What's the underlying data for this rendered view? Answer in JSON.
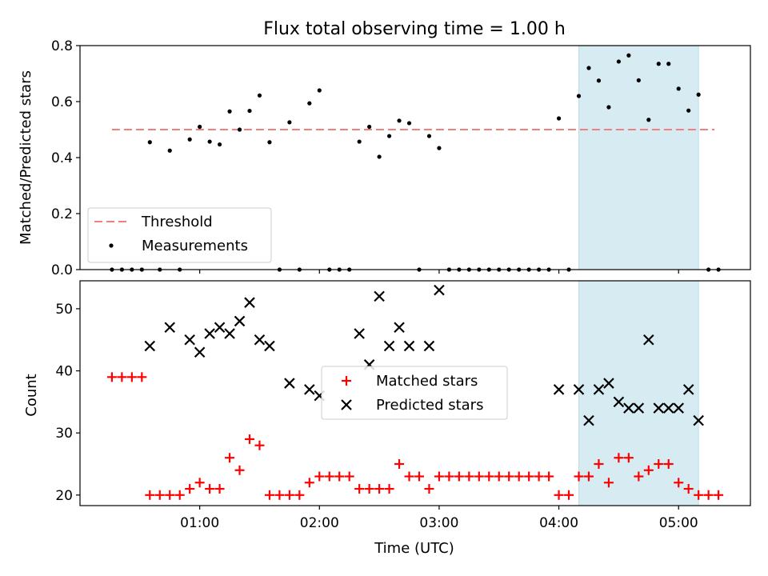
{
  "chart_data": [
    {
      "type": "scatter",
      "title": "Flux total observing time = 1.00 h",
      "ylabel": "Matched/Predicted stars",
      "xlabel": "",
      "ylim": [
        0,
        0.8
      ],
      "xlim": [
        "00:00",
        "05:36"
      ],
      "x_ticks": [
        "01:00",
        "02:00",
        "03:00",
        "04:00",
        "05:00"
      ],
      "y_ticks": [
        "0.0",
        "0.2",
        "0.4",
        "0.6",
        "0.8"
      ],
      "legend_position": "lower-left",
      "highlight_span": [
        "04:10",
        "05:10"
      ],
      "threshold": {
        "name": "Threshold",
        "value": 0.5,
        "x_range": [
          "00:16",
          "05:18"
        ],
        "color": "#f08080"
      },
      "series": [
        {
          "name": "Measurements",
          "color": "#000000",
          "points": [
            [
              "00:16",
              0
            ],
            [
              "00:21",
              0
            ],
            [
              "00:26",
              0
            ],
            [
              "00:31",
              0
            ],
            [
              "00:35",
              0.455
            ],
            [
              "00:40",
              0
            ],
            [
              "00:45",
              0.425
            ],
            [
              "00:50",
              0
            ],
            [
              "00:55",
              0.465
            ],
            [
              "01:00",
              0.51
            ],
            [
              "01:05",
              0.457
            ],
            [
              "01:10",
              0.447
            ],
            [
              "01:15",
              0.565
            ],
            [
              "01:20",
              0.5
            ],
            [
              "01:25",
              0.567
            ],
            [
              "01:30",
              0.622
            ],
            [
              "01:35",
              0.455
            ],
            [
              "01:40",
              0
            ],
            [
              "01:45",
              0.526
            ],
            [
              "01:50",
              0
            ],
            [
              "01:55",
              0.594
            ],
            [
              "02:00",
              0.64
            ],
            [
              "02:05",
              0
            ],
            [
              "02:10",
              0
            ],
            [
              "02:15",
              0
            ],
            [
              "02:20",
              0.457
            ],
            [
              "02:25",
              0.51
            ],
            [
              "02:30",
              0.403
            ],
            [
              "02:35",
              0.477
            ],
            [
              "02:40",
              0.532
            ],
            [
              "02:45",
              0.523
            ],
            [
              "02:50",
              0
            ],
            [
              "02:55",
              0.477
            ],
            [
              "03:00",
              0.434
            ],
            [
              "03:05",
              0
            ],
            [
              "03:10",
              0
            ],
            [
              "03:15",
              0
            ],
            [
              "03:20",
              0
            ],
            [
              "03:25",
              0
            ],
            [
              "03:30",
              0
            ],
            [
              "03:35",
              0
            ],
            [
              "03:40",
              0
            ],
            [
              "03:45",
              0
            ],
            [
              "03:50",
              0
            ],
            [
              "03:55",
              0
            ],
            [
              "04:00",
              0.54
            ],
            [
              "04:05",
              0
            ],
            [
              "04:10",
              0.62
            ],
            [
              "04:15",
              0.72
            ],
            [
              "04:20",
              0.675
            ],
            [
              "04:25",
              0.58
            ],
            [
              "04:30",
              0.743
            ],
            [
              "04:35",
              0.765
            ],
            [
              "04:40",
              0.676
            ],
            [
              "04:45",
              0.535
            ],
            [
              "04:50",
              0.735
            ],
            [
              "04:55",
              0.735
            ],
            [
              "05:00",
              0.646
            ],
            [
              "05:05",
              0.568
            ],
            [
              "05:10",
              0.625
            ],
            [
              "05:15",
              0
            ],
            [
              "05:20",
              0
            ]
          ]
        }
      ]
    },
    {
      "type": "scatter",
      "title": "",
      "ylabel": "Count",
      "xlabel": "Time (UTC)",
      "ylim": [
        18.3,
        54.5
      ],
      "xlim": [
        "00:00",
        "05:36"
      ],
      "x_ticks": [
        "01:00",
        "02:00",
        "03:00",
        "04:00",
        "05:00"
      ],
      "y_ticks": [
        "20",
        "30",
        "40",
        "50"
      ],
      "legend_position": "center",
      "highlight_span": [
        "04:10",
        "05:10"
      ],
      "series": [
        {
          "name": "Matched stars",
          "color": "#ff0000",
          "marker": "+",
          "points": [
            [
              "00:16",
              39
            ],
            [
              "00:21",
              39
            ],
            [
              "00:26",
              39
            ],
            [
              "00:31",
              39
            ],
            [
              "00:35",
              20
            ],
            [
              "00:40",
              20
            ],
            [
              "00:45",
              20
            ],
            [
              "00:50",
              20
            ],
            [
              "00:55",
              21
            ],
            [
              "01:00",
              22
            ],
            [
              "01:05",
              21
            ],
            [
              "01:10",
              21
            ],
            [
              "01:15",
              26
            ],
            [
              "01:20",
              24
            ],
            [
              "01:25",
              29
            ],
            [
              "01:30",
              28
            ],
            [
              "01:35",
              20
            ],
            [
              "01:40",
              20
            ],
            [
              "01:45",
              20
            ],
            [
              "01:50",
              20
            ],
            [
              "01:55",
              22
            ],
            [
              "02:00",
              23
            ],
            [
              "02:05",
              23
            ],
            [
              "02:10",
              23
            ],
            [
              "02:15",
              23
            ],
            [
              "02:20",
              21
            ],
            [
              "02:25",
              21
            ],
            [
              "02:30",
              21
            ],
            [
              "02:35",
              21
            ],
            [
              "02:40",
              25
            ],
            [
              "02:45",
              23
            ],
            [
              "02:50",
              23
            ],
            [
              "02:55",
              21
            ],
            [
              "03:00",
              23
            ],
            [
              "03:05",
              23
            ],
            [
              "03:10",
              23
            ],
            [
              "03:15",
              23
            ],
            [
              "03:20",
              23
            ],
            [
              "03:25",
              23
            ],
            [
              "03:30",
              23
            ],
            [
              "03:35",
              23
            ],
            [
              "03:40",
              23
            ],
            [
              "03:45",
              23
            ],
            [
              "03:50",
              23
            ],
            [
              "03:55",
              23
            ],
            [
              "04:00",
              20
            ],
            [
              "04:05",
              20
            ],
            [
              "04:10",
              23
            ],
            [
              "04:15",
              23
            ],
            [
              "04:20",
              25
            ],
            [
              "04:25",
              22
            ],
            [
              "04:30",
              26
            ],
            [
              "04:35",
              26
            ],
            [
              "04:40",
              23
            ],
            [
              "04:45",
              24
            ],
            [
              "04:50",
              25
            ],
            [
              "04:55",
              25
            ],
            [
              "05:00",
              22
            ],
            [
              "05:05",
              21
            ],
            [
              "05:10",
              20
            ],
            [
              "05:15",
              20
            ],
            [
              "05:20",
              20
            ]
          ]
        },
        {
          "name": "Predicted stars",
          "color": "#000000",
          "marker": "x",
          "points": [
            [
              "00:35",
              44
            ],
            [
              "00:45",
              47
            ],
            [
              "00:55",
              45
            ],
            [
              "01:00",
              43
            ],
            [
              "01:05",
              46
            ],
            [
              "01:10",
              47
            ],
            [
              "01:15",
              46
            ],
            [
              "01:20",
              48
            ],
            [
              "01:25",
              51
            ],
            [
              "01:30",
              45
            ],
            [
              "01:35",
              44
            ],
            [
              "01:45",
              38
            ],
            [
              "01:55",
              37
            ],
            [
              "02:00",
              36
            ],
            [
              "02:20",
              46
            ],
            [
              "02:25",
              41
            ],
            [
              "02:30",
              52
            ],
            [
              "02:35",
              44
            ],
            [
              "02:40",
              47
            ],
            [
              "02:45",
              44
            ],
            [
              "02:55",
              44
            ],
            [
              "03:00",
              53
            ],
            [
              "04:00",
              37
            ],
            [
              "04:10",
              37
            ],
            [
              "04:15",
              32
            ],
            [
              "04:20",
              37
            ],
            [
              "04:25",
              38
            ],
            [
              "04:30",
              35
            ],
            [
              "04:35",
              34
            ],
            [
              "04:40",
              34
            ],
            [
              "04:45",
              45
            ],
            [
              "04:50",
              34
            ],
            [
              "04:55",
              34
            ],
            [
              "05:00",
              34
            ],
            [
              "05:05",
              37
            ],
            [
              "05:10",
              32
            ]
          ]
        }
      ]
    }
  ]
}
